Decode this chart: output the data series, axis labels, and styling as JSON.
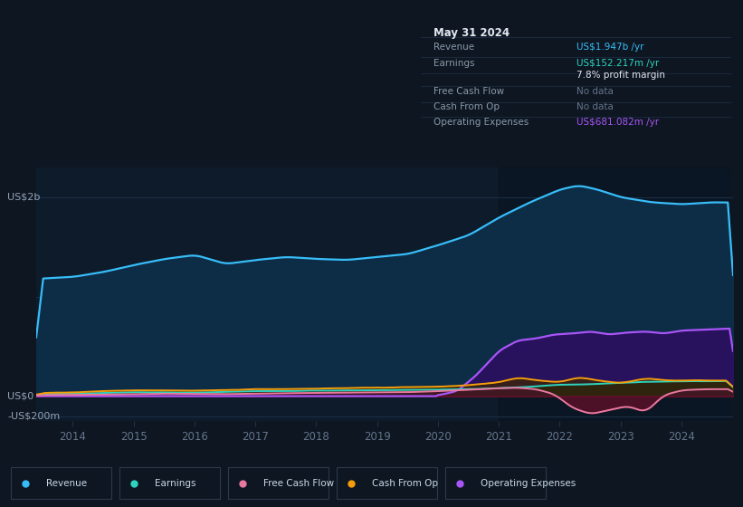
{
  "bg_color": "#0e1621",
  "plot_bg_color": "#0d1b2a",
  "tooltip_bg": "#050a0f",
  "tooltip_title": "May 31 2024",
  "tooltip_rows": [
    {
      "label": "Revenue",
      "value": "US$1.947b /yr",
      "value_color": "#38bdf8"
    },
    {
      "label": "Earnings",
      "value": "US$152.217m /yr",
      "value_color": "#2dd4bf"
    },
    {
      "label": "",
      "value": "7.8% profit margin",
      "value_color": "#e2e8f0"
    },
    {
      "label": "Free Cash Flow",
      "value": "No data",
      "value_color": "#64748b"
    },
    {
      "label": "Cash From Op",
      "value": "No data",
      "value_color": "#64748b"
    },
    {
      "label": "Operating Expenses",
      "value": "US$681.082m /yr",
      "value_color": "#a855f7"
    }
  ],
  "legend": [
    {
      "label": "Revenue",
      "color": "#38bdf8"
    },
    {
      "label": "Earnings",
      "color": "#2dd4bf"
    },
    {
      "label": "Free Cash Flow",
      "color": "#e879a0"
    },
    {
      "label": "Cash From Op",
      "color": "#f59e0b"
    },
    {
      "label": "Operating Expenses",
      "color": "#a855f7"
    }
  ],
  "ylabel_top": "US$2b",
  "ylabel_mid": "US$0",
  "ylabel_bot": "-US$200m",
  "x_ticks": [
    2014,
    2015,
    2016,
    2017,
    2018,
    2019,
    2020,
    2021,
    2022,
    2023,
    2024
  ],
  "xlim": [
    2013.4,
    2024.85
  ],
  "ylim": [
    -0.25,
    2.3
  ],
  "revenue_color": "#38bdf8",
  "revenue_fill": "#0a3d5c",
  "earnings_color": "#2dd4bf",
  "earnings_fill": "#0d3d38",
  "fcf_color": "#e879a0",
  "fcf_fill_pos": "#7c2d4a",
  "fcf_fill_neg": "#be185d",
  "cfop_color": "#f59e0b",
  "cfop_fill": "#78450a",
  "opex_color": "#a855f7",
  "opex_fill": "#4c1d95",
  "grid_color": "#1e3048",
  "tick_color": "#64748b",
  "label_color": "#94a3b8",
  "shade_color": "#0a1520"
}
